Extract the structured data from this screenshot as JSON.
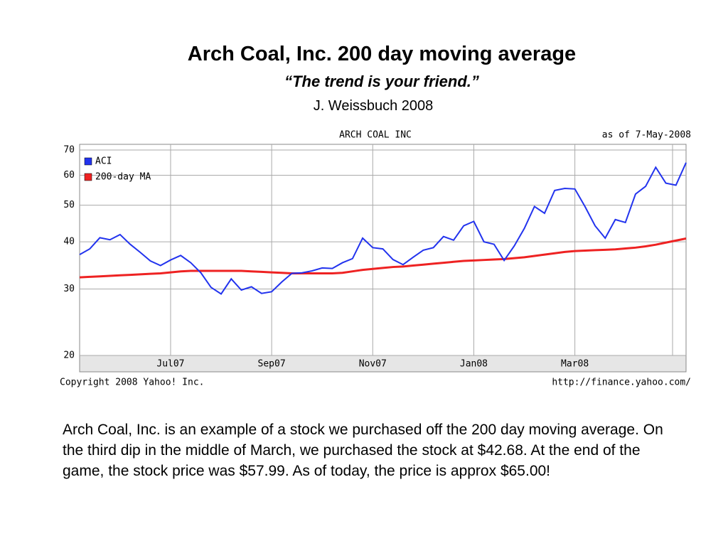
{
  "title": "Arch Coal, Inc. 200 day moving average",
  "subtitle": "“The trend is your friend.”",
  "author": "J. Weissbuch  2008",
  "body": "Arch Coal, Inc. is an example of a stock we purchased off the 200 day moving average. On the third dip in the middle of March, we purchased the stock at $42.68. At the end of the game, the stock price was $57.99. As of today, the price is approx $65.00!",
  "chart_data": {
    "type": "line",
    "title": "ARCH COAL INC",
    "annotation": "as of  7-May-2008",
    "footer_left": "Copyright 2008 Yahoo! Inc.",
    "footer_right": "http://finance.yahoo.com/",
    "log_scale": true,
    "grid": true,
    "legend": "upper left",
    "categories": [
      null,
      null,
      null,
      null,
      null,
      null,
      null,
      null,
      null,
      "Jul07",
      null,
      null,
      null,
      null,
      null,
      null,
      null,
      null,
      null,
      "Sep07",
      null,
      null,
      null,
      null,
      null,
      null,
      null,
      null,
      null,
      "Nov07",
      null,
      null,
      null,
      null,
      null,
      null,
      null,
      null,
      null,
      "Jan08",
      null,
      null,
      null,
      null,
      null,
      null,
      null,
      null,
      null,
      "Mar08",
      null,
      null,
      null,
      null,
      null,
      null,
      null,
      null,
      null,
      null,
      null
    ],
    "ylim": [
      20,
      70
    ],
    "yticks": [
      20,
      30,
      40,
      50,
      60,
      70
    ],
    "series": [
      {
        "name": "ACI",
        "color": "#2233ee",
        "values": [
          37,
          38.3,
          41,
          40.5,
          41.8,
          39.4,
          37.5,
          35.6,
          34.6,
          35.8,
          36.8,
          35.2,
          33.1,
          30.3,
          29.1,
          31.9,
          29.8,
          30.4,
          29.2,
          29.5,
          31.3,
          33,
          33.1,
          33.5,
          34.1,
          34,
          35.2,
          36.1,
          40.9,
          38.6,
          38.3,
          35.9,
          34.8,
          36.4,
          38,
          38.6,
          41.3,
          40.4,
          44.1,
          45.3,
          40,
          39.4,
          35.7,
          39,
          43.4,
          49.6,
          47.6,
          54.7,
          55.4,
          55.2,
          49.6,
          44.1,
          40.9,
          45.8,
          45,
          53.5,
          56.1,
          63,
          57.2,
          56.5,
          64.8
        ]
      },
      {
        "name": "200-day MA",
        "color": "#ee2222",
        "values": [
          32.2,
          32.3,
          32.4,
          32.5,
          32.6,
          32.7,
          32.8,
          32.9,
          33.0,
          33.2,
          33.4,
          33.5,
          33.5,
          33.5,
          33.5,
          33.5,
          33.5,
          33.4,
          33.3,
          33.2,
          33.1,
          33.0,
          33.0,
          33.0,
          33.0,
          33.0,
          33.1,
          33.4,
          33.7,
          33.9,
          34.1,
          34.3,
          34.4,
          34.6,
          34.8,
          35.0,
          35.2,
          35.4,
          35.6,
          35.7,
          35.8,
          35.9,
          36.0,
          36.2,
          36.4,
          36.7,
          37.0,
          37.3,
          37.6,
          37.8,
          37.9,
          38.0,
          38.1,
          38.2,
          38.4,
          38.6,
          38.9,
          39.3,
          39.8,
          40.3,
          40.8
        ]
      }
    ]
  }
}
